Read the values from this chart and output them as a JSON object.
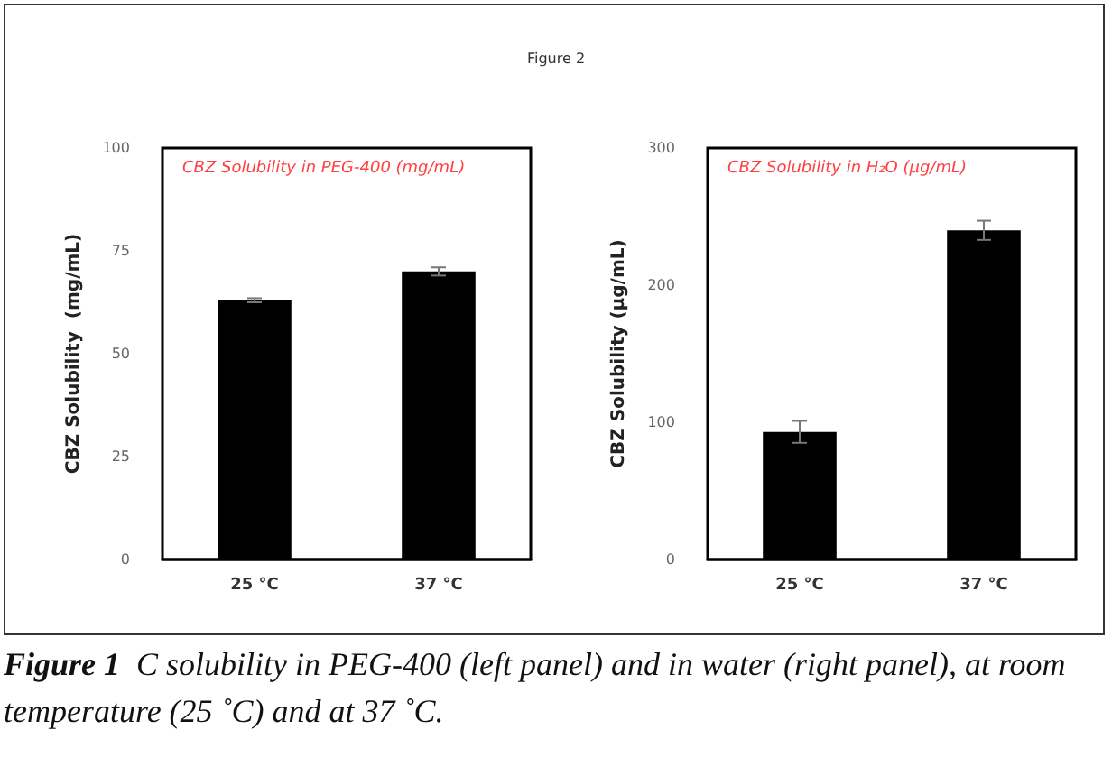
{
  "chart_data": [
    {
      "type": "bar",
      "title": "CBZ Solubility in PEG-400 (mg/mL)",
      "ylabel": "CBZ Solubility  (mg/mL)",
      "categories": [
        "25 °C",
        "37 °C"
      ],
      "values": [
        63,
        70
      ],
      "errors": [
        0.5,
        1
      ],
      "color": "#000000",
      "ylim": [
        0,
        100
      ],
      "yticks": [
        0,
        25,
        50,
        75,
        100
      ],
      "grid": false,
      "annotations": [
        "Figure 2",
        "Figure 1",
        "C solubility in PEG-400 (left panel) and in water (right panel), at room temperature (25 ˚C) and at 37 ˚C."
      ]
    },
    {
      "type": "bar",
      "title": "CBZ Solubility in H₂O (µg/mL)",
      "ylabel": "CBZ Solubility (µg/mL)",
      "categories": [
        "25 °C",
        "37 °C"
      ],
      "values": [
        93,
        240
      ],
      "errors": [
        8,
        7
      ],
      "color": "#000000",
      "ylim": [
        0,
        300
      ],
      "yticks": [
        0,
        100,
        200,
        300
      ],
      "grid": false
    }
  ]
}
